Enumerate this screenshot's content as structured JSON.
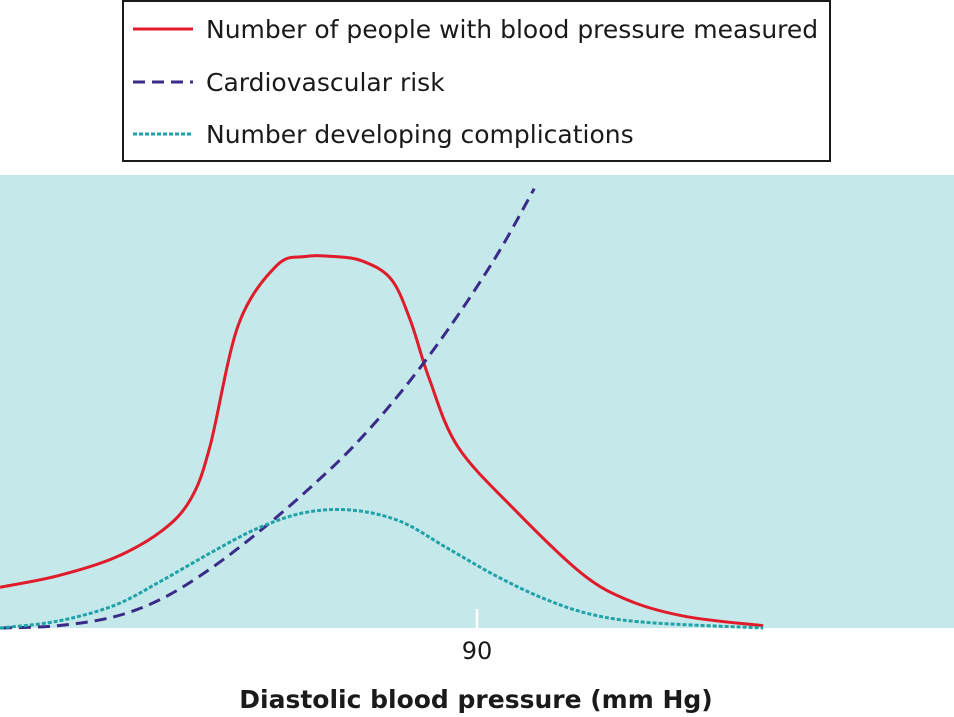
{
  "chart_data": {
    "type": "line",
    "title": "",
    "xlabel": "Diastolic blood pressure (mm Hg)",
    "ylabel": "",
    "x_ticks": [
      {
        "value": 90,
        "label": "90"
      }
    ],
    "xlim": [
      40,
      140
    ],
    "ylim": [
      0,
      100
    ],
    "grid": false,
    "legend_position": "top",
    "colors": {
      "plot_background": "#c5e8ea",
      "legend_border": "#1a1a1a",
      "tick_mark": "#ffffff"
    },
    "series": [
      {
        "name": "Number of people with blood pressure measured",
        "color": "#e01b2a",
        "style": "solid",
        "points": [
          [
            40,
            9
          ],
          [
            46,
            11.5
          ],
          [
            52,
            15.5
          ],
          [
            57,
            21.5
          ],
          [
            60,
            28.5
          ],
          [
            62,
            40
          ],
          [
            65,
            67
          ],
          [
            69,
            80
          ],
          [
            72,
            82
          ],
          [
            75,
            82
          ],
          [
            78,
            81
          ],
          [
            81,
            77
          ],
          [
            83,
            68
          ],
          [
            85,
            55
          ],
          [
            88,
            40
          ],
          [
            94,
            26
          ],
          [
            101,
            12
          ],
          [
            106,
            6
          ],
          [
            112,
            2.5
          ],
          [
            120,
            0.5
          ]
        ]
      },
      {
        "name": "Cardiovascular risk",
        "color": "#3a2b88",
        "style": "dashed",
        "points": [
          [
            40,
            0
          ],
          [
            46,
            0.5
          ],
          [
            52,
            2.5
          ],
          [
            57,
            6.5
          ],
          [
            62,
            13
          ],
          [
            67,
            21
          ],
          [
            72,
            30
          ],
          [
            77,
            40
          ],
          [
            82,
            52
          ],
          [
            87,
            66
          ],
          [
            92,
            82
          ],
          [
            96,
            97
          ]
        ]
      },
      {
        "name": "Number developing complications",
        "color": "#1fa2a8",
        "style": "dotted",
        "points": [
          [
            40,
            0
          ],
          [
            46,
            1.5
          ],
          [
            52,
            5
          ],
          [
            57,
            10.5
          ],
          [
            62,
            16.5
          ],
          [
            67,
            22
          ],
          [
            72,
            25.5
          ],
          [
            77,
            26
          ],
          [
            82,
            23.5
          ],
          [
            87,
            17.5
          ],
          [
            92,
            11.5
          ],
          [
            97,
            6.5
          ],
          [
            102,
            3
          ],
          [
            108,
            1.2
          ],
          [
            120,
            0
          ]
        ]
      }
    ]
  }
}
